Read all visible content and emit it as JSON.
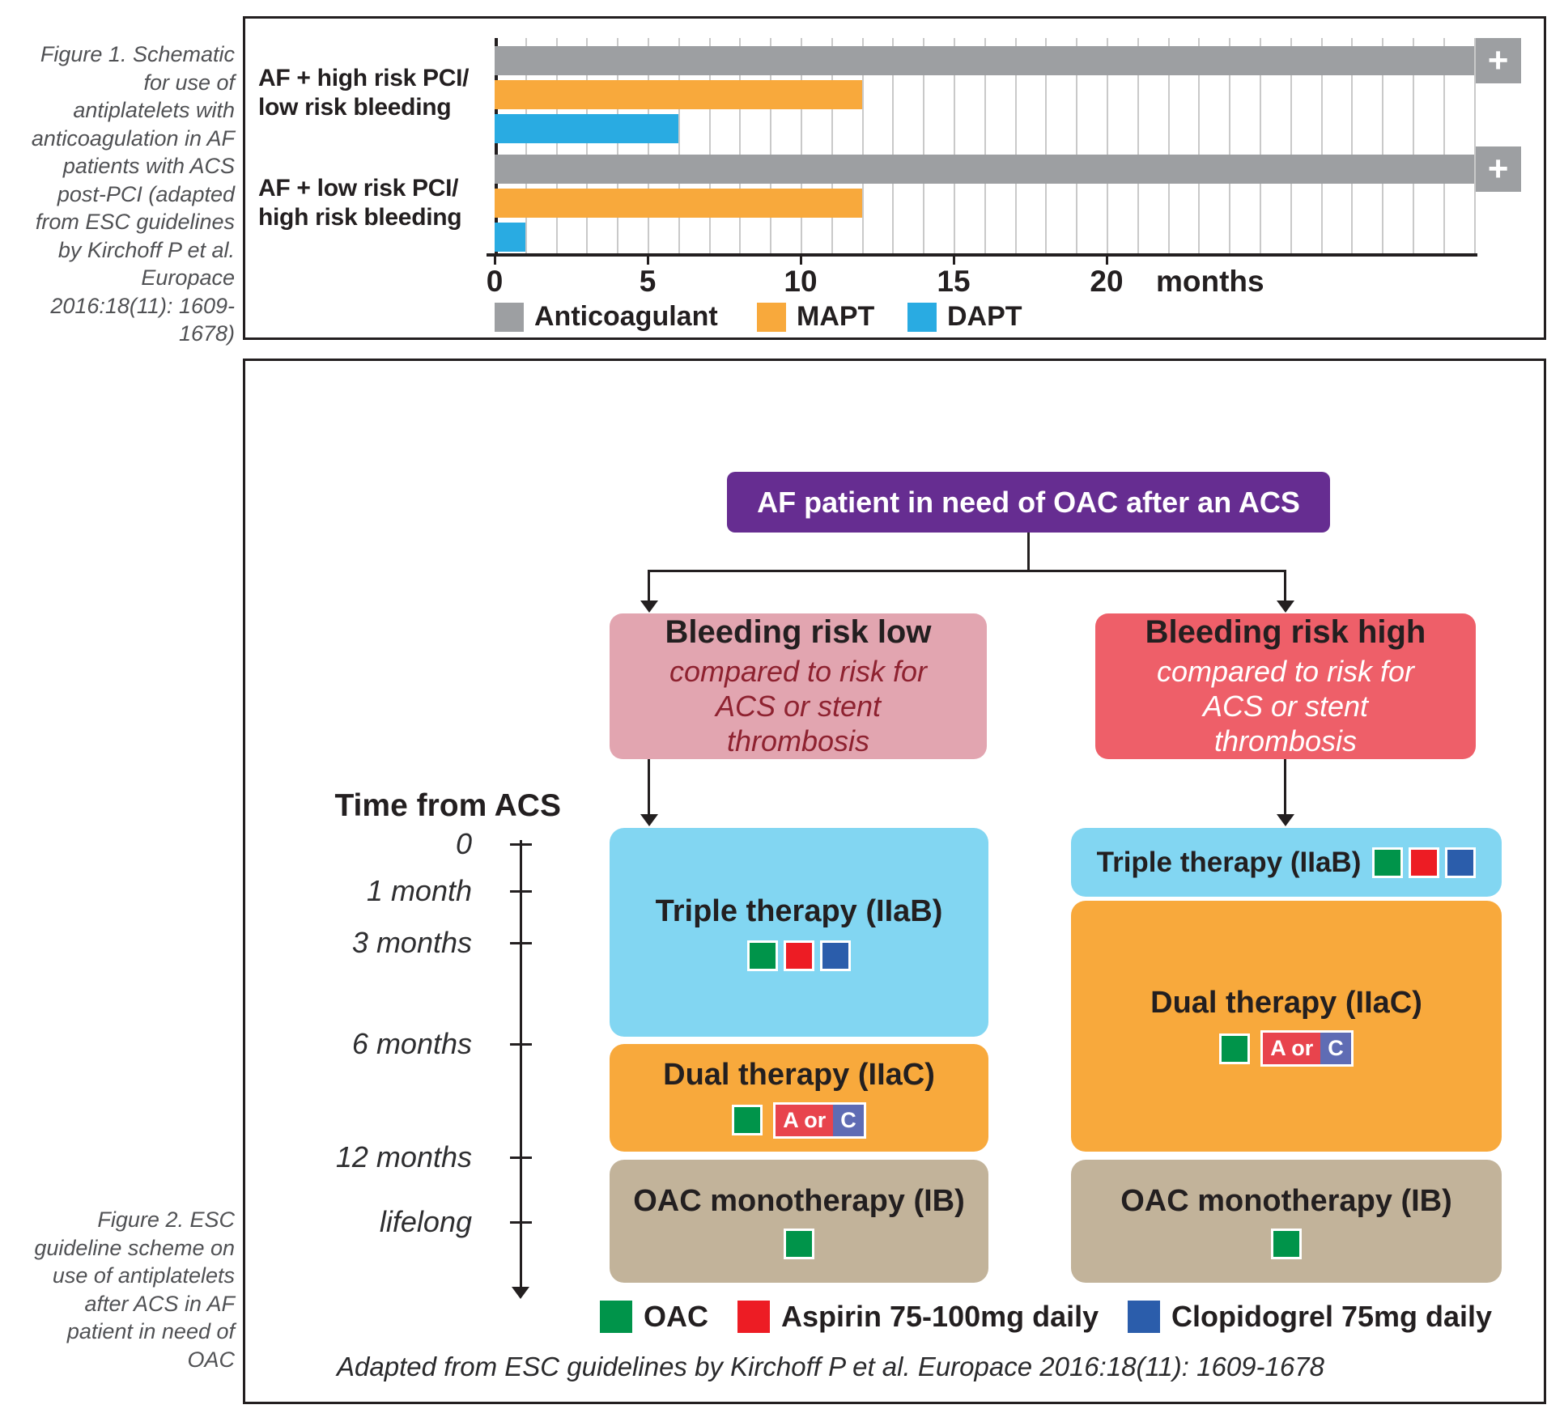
{
  "figure1": {
    "caption": "Figure 1. Schematic for use of antiplatelets with anticoagulation in AF patients with ACS post-PCI (adapted from ESC guidelines by Kirchoff P et al. Europace 2016:18(11): 1609-1678)"
  },
  "chart_data": {
    "type": "bar",
    "orientation": "horizontal",
    "title": "",
    "xlabel": "months",
    "x_unit": "months",
    "x_ticks": [
      0,
      5,
      10,
      15,
      20
    ],
    "xlim": [
      0,
      32
    ],
    "grid": true,
    "legend_position": "bottom",
    "ongoing_marker": "+",
    "categories": [
      {
        "line1": "AF + high risk PCI/",
        "line2": "low risk bleeding"
      },
      {
        "line1": "AF + low risk PCI/",
        "line2": "high risk bleeding"
      }
    ],
    "series": [
      {
        "name": "Anticoagulant",
        "color": "#9d9fa2",
        "unit": "months",
        "values": [
          "ongoing",
          "ongoing"
        ]
      },
      {
        "name": "MAPT",
        "color": "#f8a93c",
        "unit": "months",
        "values": [
          12,
          12
        ]
      },
      {
        "name": "DAPT",
        "color": "#29abe2",
        "unit": "months",
        "values": [
          6,
          1
        ]
      }
    ]
  },
  "figure2": {
    "caption": "Figure 2. ESC guideline scheme on use of antiplatelets after ACS in AF patient in need of OAC",
    "root_label": "AF patient in need of OAC after an ACS",
    "branches": {
      "low": {
        "title": "Bleeding risk low",
        "subtitle": "compared to risk for ACS or stent thrombosis"
      },
      "high": {
        "title": "Bleeding risk high",
        "subtitle": "compared to risk for ACS or stent thrombosis"
      }
    },
    "timeline": {
      "label": "Time from ACS",
      "ticks": [
        "0",
        "1 month",
        "3 months",
        "6 months",
        "12 months",
        "lifelong"
      ]
    },
    "therapies": {
      "triple": "Triple therapy (IIaB)",
      "dual": "Dual therapy (IIaC)",
      "mono": "OAC monotherapy (IB)"
    },
    "badge": {
      "a_label": "A or",
      "c_label": "C",
      "a_color": "#e8444d",
      "c_color": "#5f6cb4"
    },
    "legend": [
      {
        "label": "OAC",
        "color": "#00944a"
      },
      {
        "label": "Aspirin 75-100mg daily",
        "color": "#ed1c24"
      },
      {
        "label": "Clopidogrel 75mg daily",
        "color": "#2b5dab"
      }
    ],
    "node_colors": {
      "root": "#662d91",
      "risk_low": "#e2a5b0",
      "risk_high": "#ee5f69",
      "triple": "#82d6f2",
      "dual": "#f8a93c",
      "mono": "#c2b39a"
    },
    "footnote": "Adapted from ESC guidelines by Kirchoff P et al. Europace 2016:18(11): 1609-1678"
  }
}
